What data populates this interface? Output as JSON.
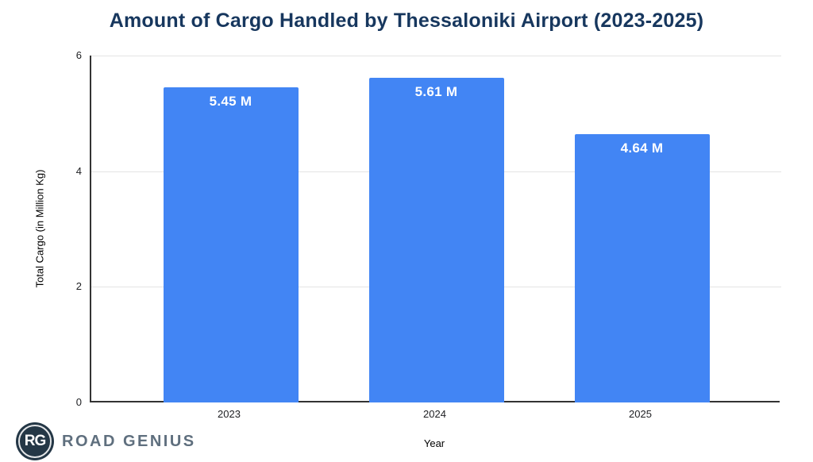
{
  "chart_data": {
    "type": "bar",
    "title": "Amount of Cargo Handled by Thessaloniki Airport (2023-2025)",
    "categories": [
      "2023",
      "2024",
      "2025"
    ],
    "values": [
      5.45,
      5.61,
      4.64
    ],
    "bar_labels": [
      "5.45 M",
      "5.61 M",
      "4.64 M"
    ],
    "xlabel": "Year",
    "ylabel": "Total Cargo (in Million Kg)",
    "ylim": [
      0,
      6
    ],
    "yticks": [
      0,
      2,
      4,
      6
    ],
    "grid": true,
    "legend": false,
    "colors": {
      "bar": "#4285F4",
      "bar_label": "#FFFFFF",
      "title": "#17375E",
      "axis_line": "#333333",
      "gridline": "#E3E3E3",
      "tick_text": "#202124"
    }
  },
  "footer": {
    "logo_monogram": "RG",
    "brand_name": "ROAD GENIUS",
    "logo_bg": "#243746",
    "brand_color": "#5F6F7E"
  }
}
